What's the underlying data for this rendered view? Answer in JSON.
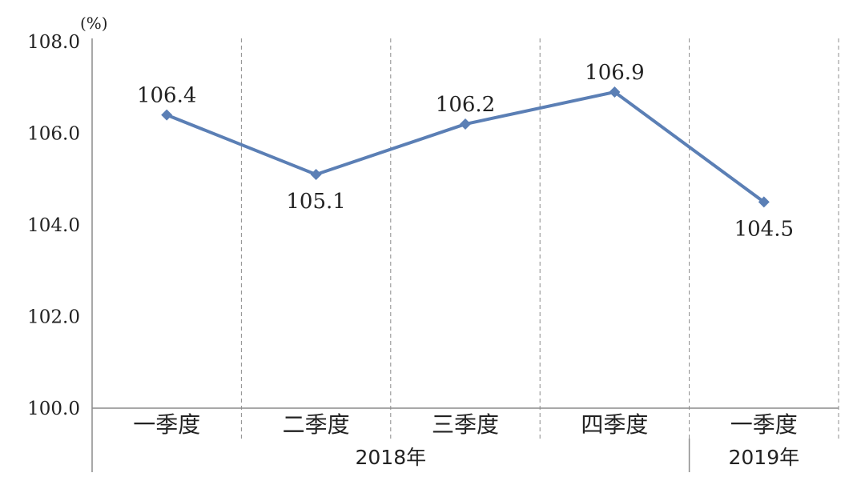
{
  "chart_data": {
    "type": "line",
    "unit_label": "(%)",
    "categories": [
      "一季度",
      "二季度",
      "三季度",
      "四季度",
      "一季度"
    ],
    "groups": [
      {
        "label": "2018年",
        "from": 0,
        "to": 3
      },
      {
        "label": "2019年",
        "from": 4,
        "to": 4
      }
    ],
    "y_ticks": [
      "100.0",
      "102.0",
      "104.0",
      "106.0",
      "108.0"
    ],
    "ylim": [
      100,
      108
    ],
    "series": [
      {
        "values": [
          106.4,
          105.1,
          106.2,
          106.9,
          104.5
        ],
        "labels": [
          "106.4",
          "105.1",
          "106.2",
          "106.9",
          "104.5"
        ],
        "label_position": [
          "above",
          "below",
          "above",
          "above",
          "below"
        ],
        "color": "#5b7fb5"
      }
    ],
    "grid": "vertical-dashed",
    "legend": "none"
  }
}
